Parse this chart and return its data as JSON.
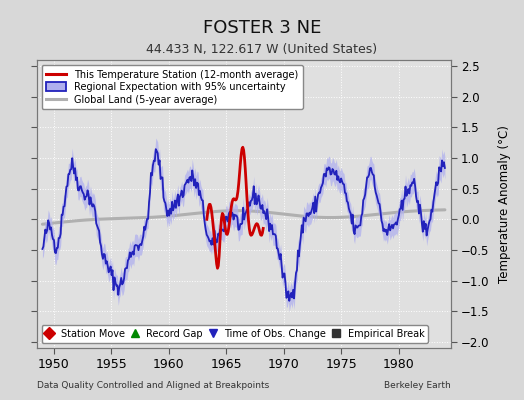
{
  "title": "FOSTER 3 NE",
  "subtitle": "44.433 N, 122.617 W (United States)",
  "ylabel": "Temperature Anomaly (°C)",
  "xlabel_bottom_left": "Data Quality Controlled and Aligned at Breakpoints",
  "xlabel_bottom_right": "Berkeley Earth",
  "ylim": [
    -2.1,
    2.6
  ],
  "yticks": [
    -2,
    -1.5,
    -1,
    -0.5,
    0,
    0.5,
    1,
    1.5,
    2,
    2.5
  ],
  "xlim": [
    1948.5,
    1984.5
  ],
  "xticks": [
    1950,
    1955,
    1960,
    1965,
    1970,
    1975,
    1980
  ],
  "fig_facecolor": "#d8d8d8",
  "bg_color": "#e0e0e0",
  "grid_color": "#ffffff",
  "station_color": "#cc0000",
  "regional_color": "#2222bb",
  "regional_fill_color": "#b0b0ee",
  "global_color": "#b0b0b0",
  "legend1_labels": [
    "This Temperature Station (12-month average)",
    "Regional Expectation with 95% uncertainty",
    "Global Land (5-year average)"
  ],
  "legend2_labels": [
    "Station Move",
    "Record Gap",
    "Time of Obs. Change",
    "Empirical Break"
  ],
  "legend2_markers": [
    "D",
    "^",
    "v",
    "s"
  ],
  "legend2_colors": [
    "#cc0000",
    "#008800",
    "#2222bb",
    "#333333"
  ]
}
